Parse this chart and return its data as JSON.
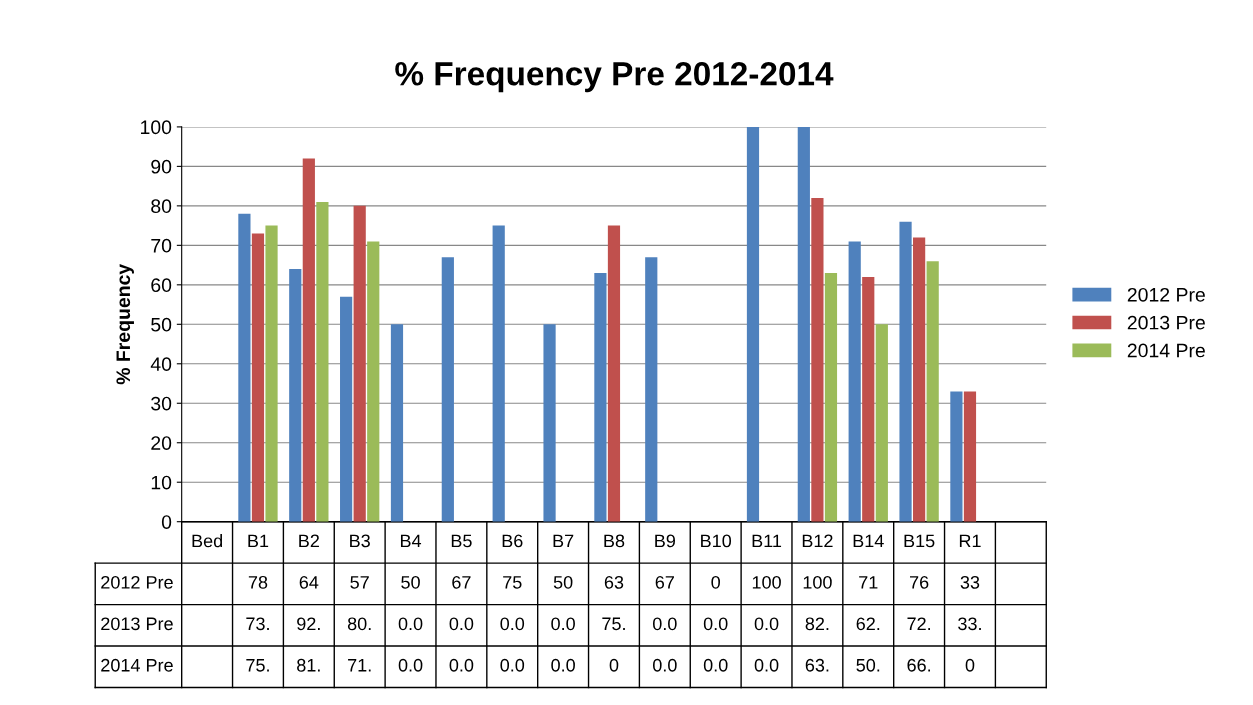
{
  "chart_data": {
    "type": "bar",
    "title": "% Frequency Pre 2012-2014",
    "ylabel": "% Frequency",
    "categories": [
      "Bed",
      "B1",
      "B2",
      "B3",
      "B4",
      "B5",
      "B6",
      "B7",
      "B8",
      "B9",
      "B10",
      "B11",
      "B12",
      "B14",
      "B15",
      "R1",
      null
    ],
    "series": [
      {
        "name": "2012 Pre",
        "color": "#4f81bd",
        "values": [
          null,
          78,
          64,
          57,
          50,
          67,
          75,
          50,
          63,
          67,
          0,
          100,
          100,
          71,
          76,
          33,
          null
        ],
        "value_labels": [
          null,
          "78",
          "64",
          "57",
          "50",
          "67",
          "75",
          "50",
          "63",
          "67",
          "0",
          "100",
          "100",
          "71",
          "76",
          "33",
          null
        ]
      },
      {
        "name": "2013 Pre",
        "color": "#c0504d",
        "values": [
          null,
          73,
          92,
          80,
          0,
          0,
          0,
          0,
          75,
          0,
          0,
          0,
          82,
          62,
          72,
          33,
          null
        ],
        "value_labels": [
          null,
          "73.",
          "92.",
          "80.",
          "0.0",
          "0.0",
          "0.0",
          "0.0",
          "75.",
          "0.0",
          "0.0",
          "0.0",
          "82.",
          "62.",
          "72.",
          "33.",
          null
        ]
      },
      {
        "name": "2014 Pre",
        "color": "#9bbb59",
        "values": [
          null,
          75,
          81,
          71,
          0,
          0,
          0,
          0,
          0,
          0,
          0,
          0,
          63,
          50,
          66,
          0,
          null
        ],
        "value_labels": [
          null,
          "75.",
          "81.",
          "71.",
          "0.0",
          "0.0",
          "0.0",
          "0.0",
          "0",
          "0.0",
          "0.0",
          "0.0",
          "63.",
          "50.",
          "66.",
          "0",
          null
        ]
      }
    ],
    "ylim": [
      0,
      100
    ],
    "yticks": [
      0,
      10,
      20,
      30,
      40,
      50,
      60,
      70,
      80,
      90,
      100
    ],
    "grid": "y",
    "legend": "right"
  }
}
